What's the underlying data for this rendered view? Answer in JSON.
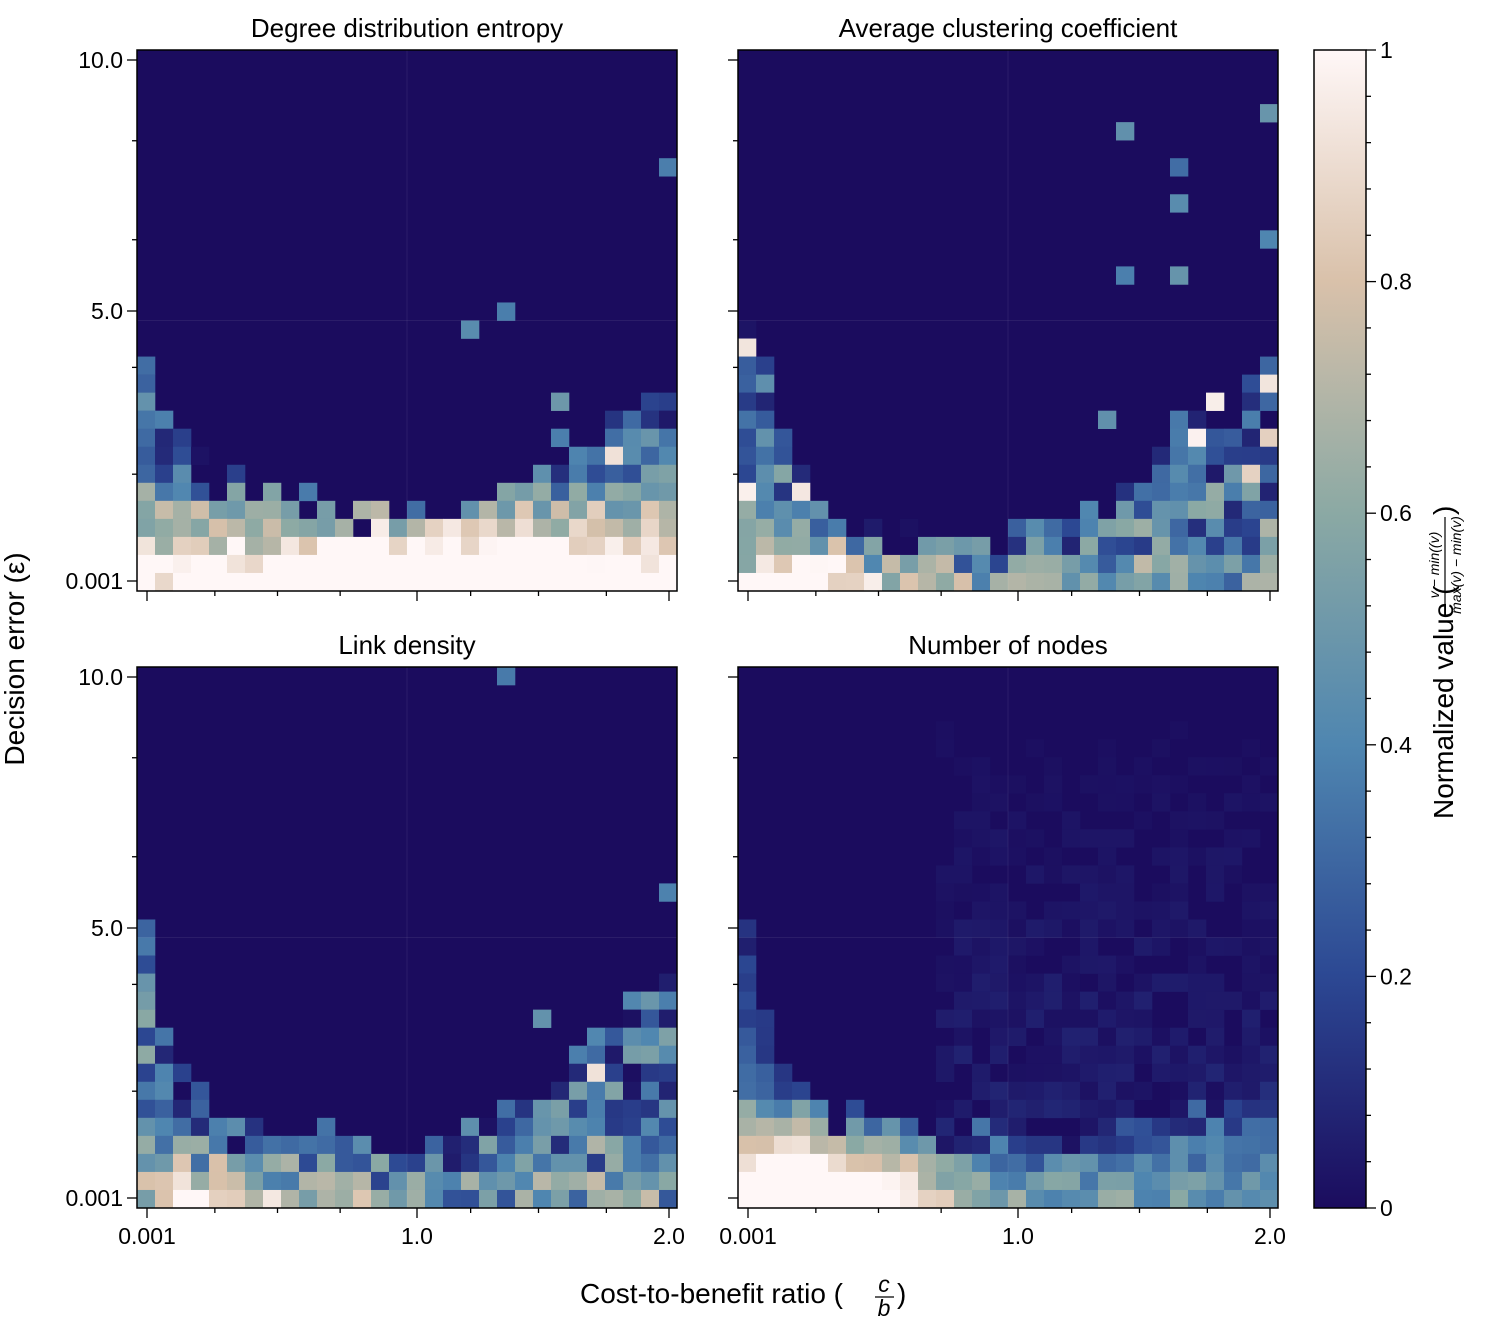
{
  "figure": {
    "ylabel": "Decision error (ε)",
    "xlabel_text": "Cost-to-benefit ratio (",
    "xlabel_frac_num": "c",
    "xlabel_frac_den": "b",
    "xlabel_close": ")"
  },
  "colorbar": {
    "label_text": "Normalized value (",
    "label_frac_num": "v − min((v)",
    "label_frac_den": "max(v) − min(v)",
    "label_close": ")",
    "ticks": [
      "0",
      "0.2",
      "0.4",
      "0.6",
      "0.8",
      "1"
    ],
    "tick_values": [
      0,
      0.2,
      0.4,
      0.6,
      0.8,
      1.0
    ],
    "colors": [
      "#1b0c5e",
      "#2c4893",
      "#4f86b0",
      "#8ba9a4",
      "#d9c1aa",
      "#fff7f7"
    ]
  },
  "chart_data": [
    {
      "type": "heatmap",
      "title": "Degree distribution entropy",
      "xticks": [
        "0.001",
        "1.0",
        "2.0"
      ],
      "yticks": [
        "10.0",
        "5.0",
        "0.001"
      ],
      "xrange": [
        0.001,
        2.0
      ],
      "yrange": [
        0.001,
        10.0
      ],
      "grid": [
        30,
        30
      ],
      "profile": {
        "baseline": 0.22,
        "left_reach": 0.45,
        "left_width": 0.15,
        "right_reach": 0.45,
        "bottom_peak": 0.95,
        "bottom_center": 0.6,
        "bottom_spread": 0.8,
        "noise": 0.22,
        "seed": 11
      }
    },
    {
      "type": "heatmap",
      "title": "Average clustering coefficient",
      "xticks": [
        "0.001",
        "1.0",
        "2.0"
      ],
      "yticks": [
        "10.0",
        "5.0",
        "0.001"
      ],
      "xrange": [
        0.001,
        2.0
      ],
      "yrange": [
        0.001,
        10.0
      ],
      "grid": [
        30,
        30
      ],
      "profile": {
        "baseline": 0.15,
        "left_reach": 0.5,
        "left_width": 0.13,
        "right_reach": 0.48,
        "bottom_peak": 0.55,
        "bottom_center": 0.1,
        "bottom_spread": 0.2,
        "noise": 0.3,
        "seed": 23
      }
    },
    {
      "type": "heatmap",
      "title": "Link density",
      "xticks": [
        "0.001",
        "1.0",
        "2.0"
      ],
      "yticks": [
        "10.0",
        "5.0",
        "0.001"
      ],
      "xrange": [
        0.001,
        2.0
      ],
      "yrange": [
        0.001,
        10.0
      ],
      "grid": [
        30,
        30
      ],
      "profile": {
        "baseline": 0.17,
        "left_reach": 0.5,
        "left_width": 0.12,
        "right_reach": 0.5,
        "bottom_peak": 0.35,
        "bottom_center": 0.1,
        "bottom_spread": 0.3,
        "noise": 0.3,
        "seed": 37
      }
    },
    {
      "type": "heatmap",
      "title": "Number of nodes",
      "xticks": [
        "0.001",
        "1.0",
        "2.0"
      ],
      "yticks": [
        "10.0",
        "5.0",
        "0.001"
      ],
      "xrange": [
        0.001,
        2.0
      ],
      "yrange": [
        0.001,
        10.0
      ],
      "grid": [
        30,
        30
      ],
      "profile": {
        "baseline": 0.2,
        "left_reach": 0.5,
        "left_width": 0.14,
        "right_reach": 0.0,
        "bottom_peak": 0.9,
        "bottom_center": 0.12,
        "bottom_spread": 0.25,
        "noise": 0.15,
        "seed": 53,
        "faint": true
      }
    }
  ]
}
